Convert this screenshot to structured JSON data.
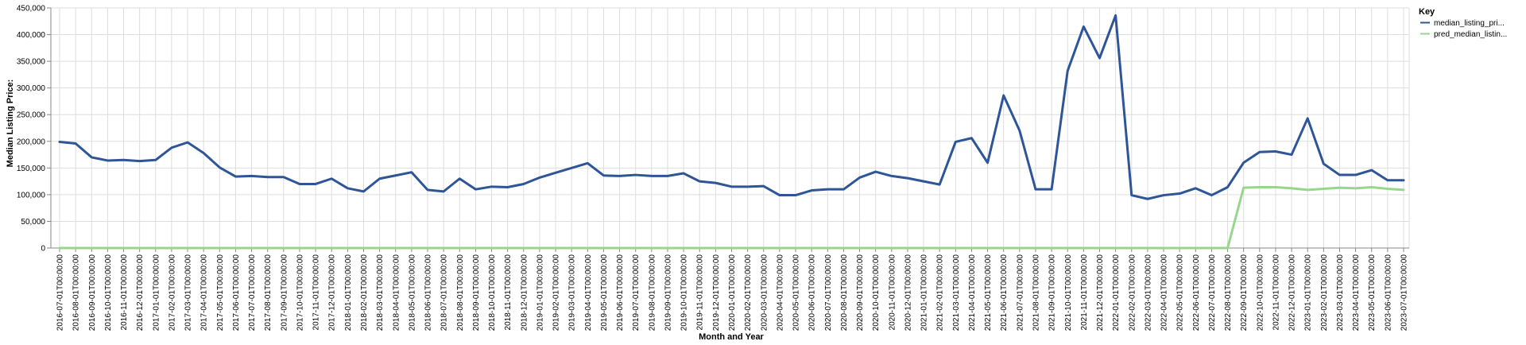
{
  "chart_data": {
    "type": "line",
    "xlabel": "Month and Year",
    "ylabel": "Median Listing Price:",
    "ylim": [
      0,
      450000
    ],
    "yticks": [
      0,
      50000,
      100000,
      150000,
      200000,
      250000,
      300000,
      350000,
      400000,
      450000
    ],
    "ytick_labels": [
      "0",
      "50,000",
      "100,000",
      "150,000",
      "200,000",
      "250,000",
      "300,000",
      "350,000",
      "400,000",
      "450,000"
    ],
    "grid": true,
    "legend": {
      "title": "Key",
      "placement": "top-right"
    },
    "x": [
      "2016-07-01T00:00:00",
      "2016-08-01T00:00:00",
      "2016-09-01T00:00:00",
      "2016-10-01T00:00:00",
      "2016-11-01T00:00:00",
      "2016-12-01T00:00:00",
      "2017-01-01T00:00:00",
      "2017-02-01T00:00:00",
      "2017-03-01T00:00:00",
      "2017-04-01T00:00:00",
      "2017-05-01T00:00:00",
      "2017-06-01T00:00:00",
      "2017-07-01T00:00:00",
      "2017-08-01T00:00:00",
      "2017-09-01T00:00:00",
      "2017-10-01T00:00:00",
      "2017-11-01T00:00:00",
      "2017-12-01T00:00:00",
      "2018-01-01T00:00:00",
      "2018-02-01T00:00:00",
      "2018-03-01T00:00:00",
      "2018-04-01T00:00:00",
      "2018-05-01T00:00:00",
      "2018-06-01T00:00:00",
      "2018-07-01T00:00:00",
      "2018-08-01T00:00:00",
      "2018-09-01T00:00:00",
      "2018-10-01T00:00:00",
      "2018-11-01T00:00:00",
      "2018-12-01T00:00:00",
      "2019-01-01T00:00:00",
      "2019-02-01T00:00:00",
      "2019-03-01T00:00:00",
      "2019-04-01T00:00:00",
      "2019-05-01T00:00:00",
      "2019-06-01T00:00:00",
      "2019-07-01T00:00:00",
      "2019-08-01T00:00:00",
      "2019-09-01T00:00:00",
      "2019-10-01T00:00:00",
      "2019-11-01T00:00:00",
      "2019-12-01T00:00:00",
      "2020-01-01T00:00:00",
      "2020-02-01T00:00:00",
      "2020-03-01T00:00:00",
      "2020-04-01T00:00:00",
      "2020-05-01T00:00:00",
      "2020-06-01T00:00:00",
      "2020-07-01T00:00:00",
      "2020-08-01T00:00:00",
      "2020-09-01T00:00:00",
      "2020-10-01T00:00:00",
      "2020-11-01T00:00:00",
      "2020-12-01T00:00:00",
      "2021-01-01T00:00:00",
      "2021-02-01T00:00:00",
      "2021-03-01T00:00:00",
      "2021-04-01T00:00:00",
      "2021-05-01T00:00:00",
      "2021-06-01T00:00:00",
      "2021-07-01T00:00:00",
      "2021-08-01T00:00:00",
      "2021-09-01T00:00:00",
      "2021-10-01T00:00:00",
      "2021-11-01T00:00:00",
      "2021-12-01T00:00:00",
      "2022-01-01T00:00:00",
      "2022-02-01T00:00:00",
      "2022-03-01T00:00:00",
      "2022-04-01T00:00:00",
      "2022-05-01T00:00:00",
      "2022-06-01T00:00:00",
      "2022-07-01T00:00:00",
      "2022-08-01T00:00:00",
      "2022-09-01T00:00:00",
      "2022-10-01T00:00:00",
      "2022-11-01T00:00:00",
      "2022-12-01T00:00:00",
      "2023-01-01T00:00:00",
      "2023-02-01T00:00:00",
      "2023-03-01T00:00:00",
      "2023-04-01T00:00:00",
      "2023-05-01T00:00:00",
      "2023-06-01T00:00:00",
      "2023-07-01T00:00:00"
    ],
    "series": [
      {
        "name": "median_listing_pri...",
        "color": "#2e5597",
        "values": [
          199000,
          196000,
          170000,
          164000,
          165000,
          163000,
          165000,
          188000,
          198000,
          178000,
          151000,
          134000,
          135000,
          133000,
          133000,
          120000,
          120000,
          130000,
          112000,
          106000,
          130000,
          136000,
          142000,
          109000,
          106000,
          130000,
          110000,
          115000,
          114000,
          120000,
          132000,
          141000,
          150000,
          159000,
          136000,
          135000,
          137000,
          135000,
          135000,
          140000,
          125000,
          122000,
          115000,
          115000,
          116000,
          99000,
          99000,
          108000,
          110000,
          110000,
          132000,
          143000,
          135000,
          131000,
          125000,
          119000,
          199000,
          206000,
          160000,
          286000,
          220000,
          110000,
          110000,
          332000,
          415000,
          356000,
          436000,
          99000,
          92000,
          99000,
          102000,
          112000,
          99000,
          114000,
          160000,
          180000,
          181000,
          175000,
          243000,
          158000,
          137000,
          137000,
          146000,
          127000,
          127000
        ]
      },
      {
        "name": "pred_median_listin...",
        "color": "#98d68c",
        "values": [
          0,
          0,
          0,
          0,
          0,
          0,
          0,
          0,
          0,
          0,
          0,
          0,
          0,
          0,
          0,
          0,
          0,
          0,
          0,
          0,
          0,
          0,
          0,
          0,
          0,
          0,
          0,
          0,
          0,
          0,
          0,
          0,
          0,
          0,
          0,
          0,
          0,
          0,
          0,
          0,
          0,
          0,
          0,
          0,
          0,
          0,
          0,
          0,
          0,
          0,
          0,
          0,
          0,
          0,
          0,
          0,
          0,
          0,
          0,
          0,
          0,
          0,
          0,
          0,
          0,
          0,
          0,
          0,
          0,
          0,
          0,
          0,
          0,
          0,
          113000,
          114000,
          114000,
          112000,
          109000,
          111000,
          113000,
          112000,
          114000,
          111000,
          109000
        ]
      }
    ]
  }
}
